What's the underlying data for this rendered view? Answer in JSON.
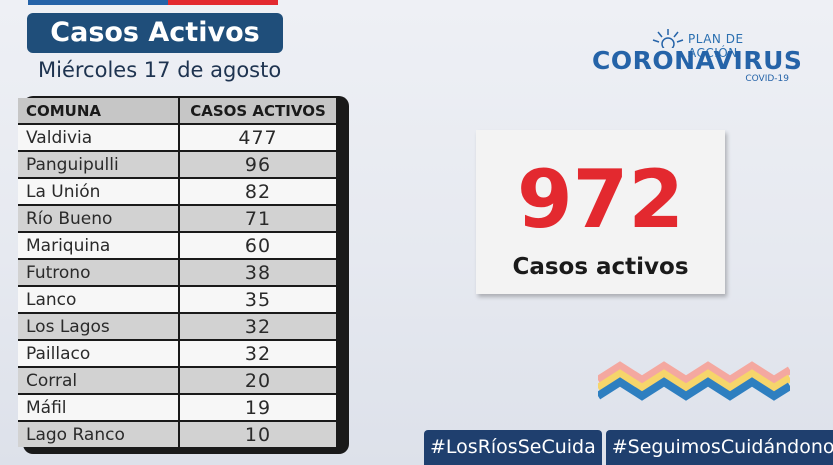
{
  "header": {
    "title": "Casos Activos",
    "date": "Miércoles 17 de agosto",
    "top_bar_colors": [
      "#2563a8",
      "#e3292f"
    ]
  },
  "logo": {
    "plan_label": "PLAN DE ACCIÓN",
    "name": "CORONAVIRUS",
    "sub": "COVID-19",
    "icon": "sun-rays-icon",
    "color": "#2563a8"
  },
  "table": {
    "headers": [
      "COMUNA",
      "CASOS ACTIVOS"
    ],
    "rows": [
      {
        "comuna": "Valdivia",
        "casos": "477"
      },
      {
        "comuna": "Panguipulli",
        "casos": "96"
      },
      {
        "comuna": "La Unión",
        "casos": "82"
      },
      {
        "comuna": "Río Bueno",
        "casos": "71"
      },
      {
        "comuna": "Mariquina",
        "casos": "60"
      },
      {
        "comuna": "Futrono",
        "casos": "38"
      },
      {
        "comuna": "Lanco",
        "casos": "35"
      },
      {
        "comuna": "Los Lagos",
        "casos": "32"
      },
      {
        "comuna": "Paillaco",
        "casos": "32"
      },
      {
        "comuna": "Corral",
        "casos": "20"
      },
      {
        "comuna": "Máfil",
        "casos": "19"
      },
      {
        "comuna": "Lago Ranco",
        "casos": "10"
      }
    ]
  },
  "summary": {
    "total": "972",
    "label": "Casos activos",
    "number_color": "#e3292f"
  },
  "footer": {
    "hashtags": [
      "#LosRíosSeCuida",
      "#SeguimosCuidándonos"
    ]
  },
  "decoration": {
    "icon": "wave-stripes-icon",
    "colors": [
      "#f4a8a0",
      "#f6d56b",
      "#2e7fc0"
    ]
  }
}
